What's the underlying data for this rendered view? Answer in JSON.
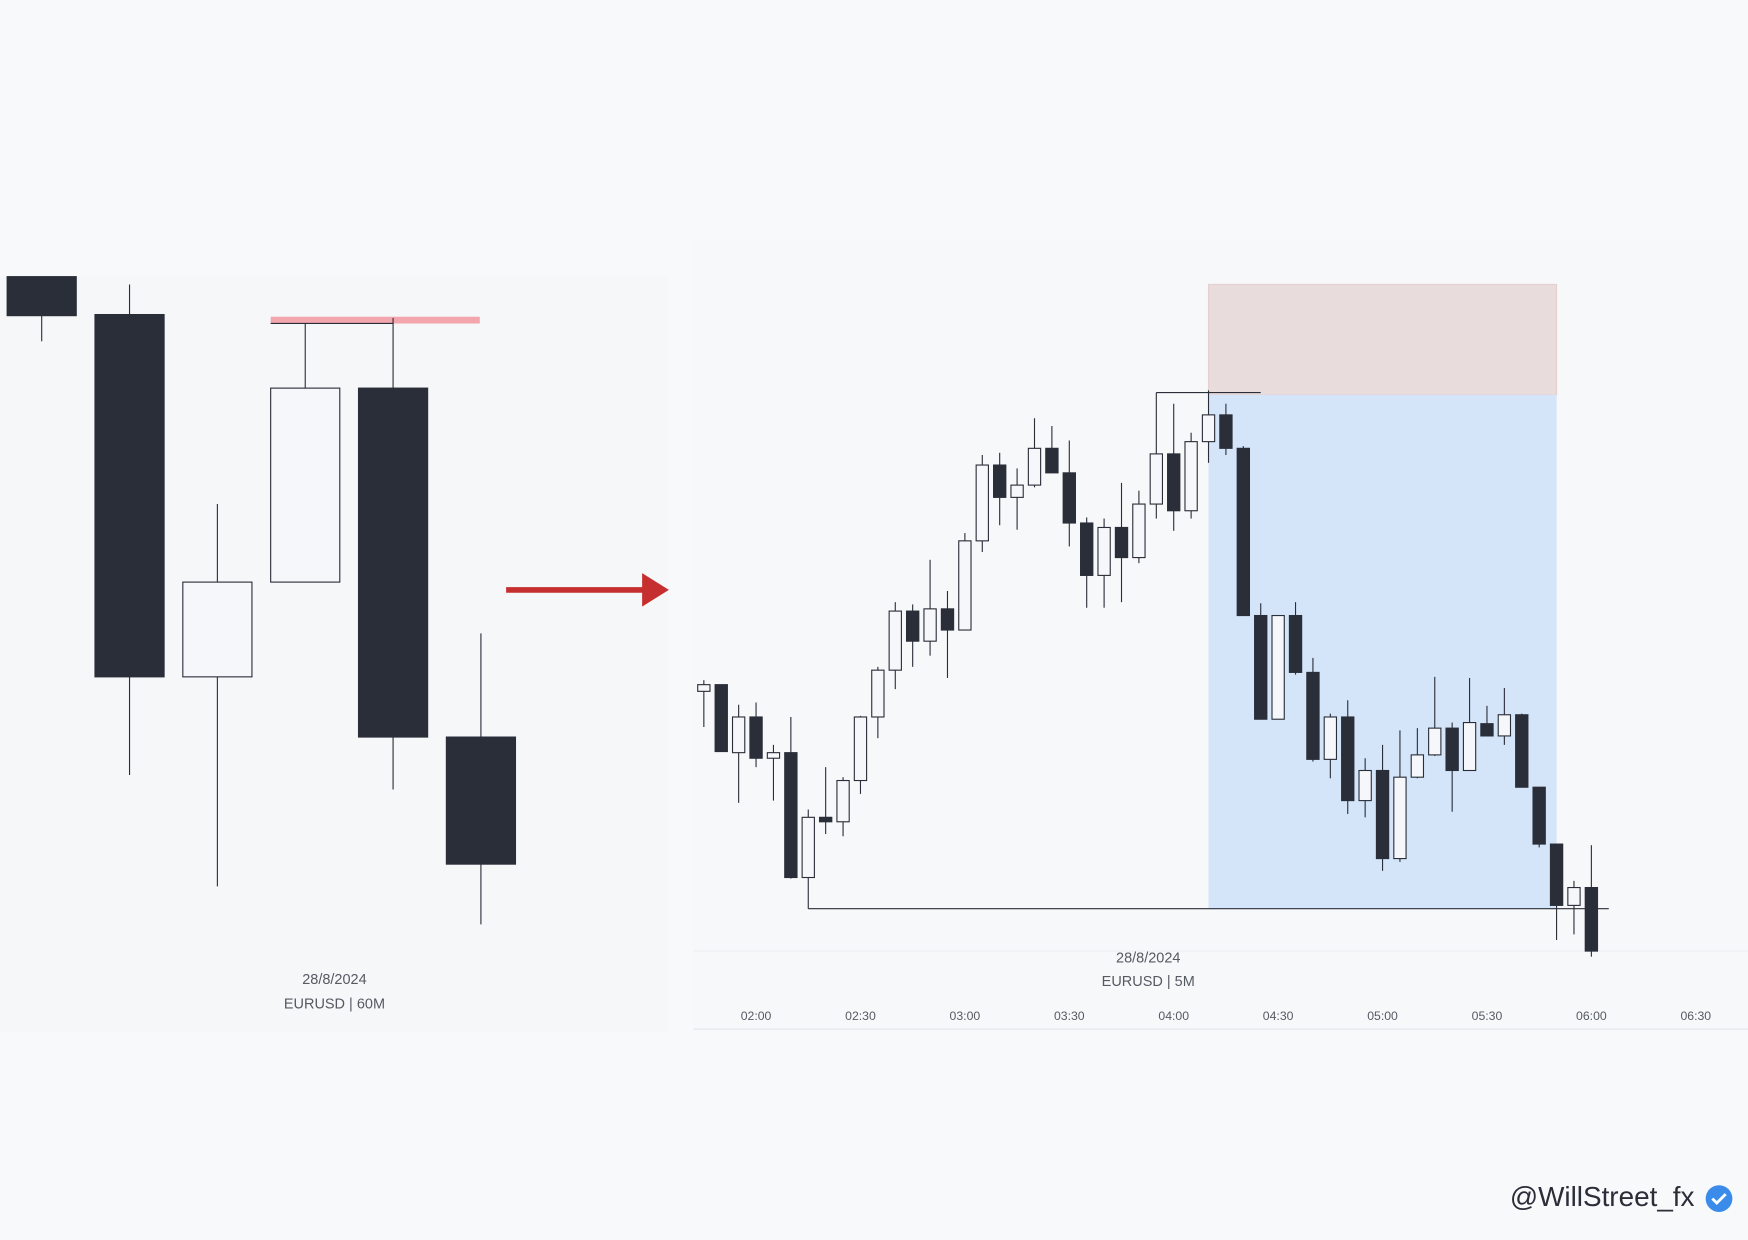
{
  "chart_data": [
    {
      "type": "candlestick",
      "subtitle": "28/8/2024",
      "title": "EURUSD | 60M",
      "categories": [
        null,
        null,
        null,
        null,
        null,
        null
      ],
      "open": [
        592,
        558,
        233,
        318,
        492,
        179
      ],
      "high": [
        592,
        585,
        388,
        550,
        555,
        272
      ],
      "low": [
        534,
        145,
        45,
        318,
        132,
        11
      ],
      "close": [
        557,
        233,
        318,
        492,
        179,
        65
      ],
      "up_color": "#f5f7fa",
      "down_color": "#2a2e39",
      "ylim": [
        0,
        600
      ],
      "levels": [
        {
          "price": 553,
          "color": "#f4a6ae"
        },
        {
          "price": 550,
          "color": "#2a2e39"
        }
      ]
    },
    {
      "type": "candlestick",
      "subtitle": "28/8/2024",
      "title": "EURUSD | 5M",
      "x": [
        "01:45",
        "01:50",
        "01:55",
        "02:00",
        "02:05",
        "02:10",
        "02:15",
        "02:20",
        "02:25",
        "02:30",
        "02:35",
        "02:40",
        "02:45",
        "02:50",
        "02:55",
        "03:00",
        "03:05",
        "03:10",
        "03:15",
        "03:20",
        "03:25",
        "03:30",
        "03:35",
        "03:40",
        "03:45",
        "03:50",
        "03:55",
        "04:00",
        "04:05",
        "04:10",
        "04:15",
        "04:20",
        "04:25",
        "04:30",
        "04:35",
        "04:40",
        "04:45",
        "04:50",
        "04:55",
        "05:00",
        "05:05",
        "05:10",
        "05:15",
        "05:20",
        "05:25",
        "05:30",
        "05:35",
        "05:40",
        "05:45",
        "05:50",
        "05:55",
        "06:00"
      ],
      "open": [
        280,
        286,
        225,
        257,
        220,
        225,
        113,
        167,
        163,
        200,
        257,
        299,
        352,
        325,
        354,
        335,
        415,
        483,
        454,
        465,
        498,
        476,
        431,
        384,
        427,
        400,
        448,
        493,
        442,
        504,
        528,
        498,
        348,
        255,
        348,
        297,
        219,
        257,
        182,
        209,
        130,
        203,
        223,
        247,
        209,
        251,
        240,
        259,
        194,
        143,
        88,
        104
      ],
      "high": [
        290,
        286,
        268,
        270,
        232,
        257,
        174,
        212,
        203,
        258,
        302,
        360,
        358,
        398,
        370,
        422,
        492,
        494,
        480,
        525,
        518,
        505,
        436,
        435,
        467,
        460,
        548,
        538,
        512,
        550,
        538,
        500,
        359,
        348,
        360,
        310,
        260,
        272,
        220,
        232,
        245,
        247,
        293,
        252,
        292,
        267,
        283,
        260,
        194,
        143,
        110,
        142
      ],
      "low": [
        248,
        226,
        180,
        212,
        182,
        112,
        85,
        152,
        150,
        188,
        238,
        282,
        302,
        312,
        292,
        335,
        405,
        429,
        425,
        463,
        476,
        410,
        355,
        355,
        360,
        395,
        435,
        424,
        435,
        485,
        492,
        348,
        255,
        255,
        295,
        217,
        202,
        170,
        167,
        119,
        127,
        202,
        222,
        172,
        209,
        240,
        232,
        194,
        140,
        57,
        62,
        42
      ],
      "close": [
        286,
        226,
        257,
        220,
        225,
        113,
        167,
        163,
        200,
        257,
        299,
        352,
        325,
        354,
        335,
        415,
        483,
        454,
        465,
        498,
        476,
        431,
        384,
        427,
        400,
        448,
        493,
        442,
        504,
        528,
        498,
        348,
        255,
        348,
        297,
        219,
        257,
        182,
        209,
        130,
        203,
        223,
        247,
        209,
        252,
        240,
        259,
        194,
        143,
        88,
        104,
        47
      ],
      "up_color": "#f5f7fa",
      "down_color": "#2a2e39",
      "ylim": [
        0,
        650
      ],
      "xlim": [
        "01:42",
        "06:45"
      ],
      "xticks": [
        "02:00",
        "02:30",
        "03:00",
        "03:30",
        "04:00",
        "04:30",
        "05:00",
        "05:30",
        "06:00",
        "06:30"
      ],
      "position": {
        "entry": 546,
        "stop": 645,
        "target": 85,
        "start": "04:10",
        "end": "05:50",
        "stop_color": "#e9dcdc",
        "target_color": "#d4e5fa"
      },
      "levels": [
        {
          "price": 85,
          "from": "02:15",
          "to": "06:05",
          "color": "#2a2e39"
        },
        {
          "price": 548,
          "from": "03:55",
          "to": "04:25",
          "color": "#2a2e39"
        }
      ]
    }
  ],
  "watermark": "@WillStreet_fx"
}
